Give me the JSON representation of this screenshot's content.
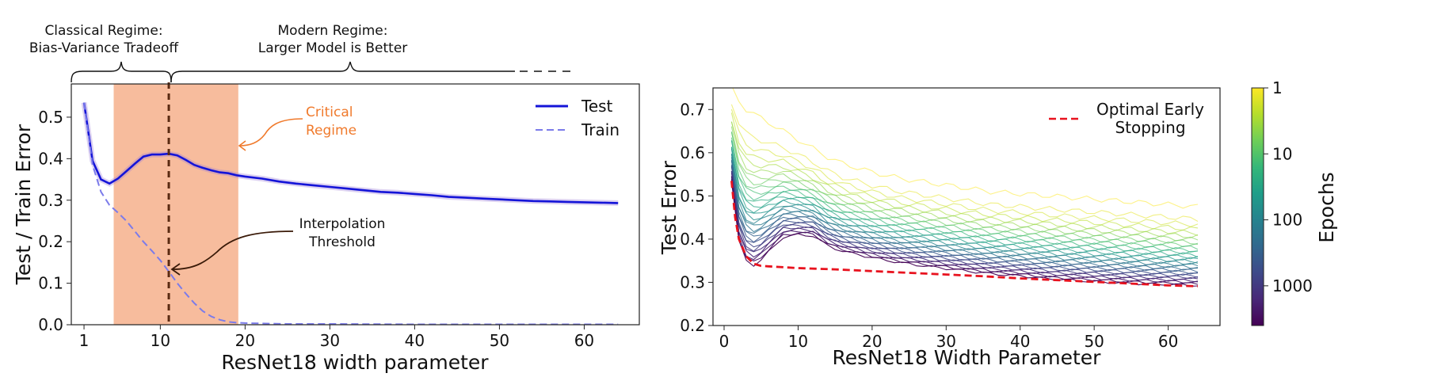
{
  "chart_data": [
    {
      "type": "line",
      "xlabel": "ResNet18 width parameter",
      "ylabel": "Test / Train Error",
      "xlim": [
        -0.5,
        66.5
      ],
      "ylim": [
        0.0,
        0.58
      ],
      "xticks": [
        1,
        10,
        20,
        30,
        40,
        50,
        60
      ],
      "yticks": [
        0.0,
        0.1,
        0.2,
        0.3,
        0.4,
        0.5
      ],
      "ytick_labels": [
        "0.0",
        "0.1",
        "0.2",
        "0.3",
        "0.4",
        "0.5"
      ],
      "legend_position": "top-right",
      "series": [
        {
          "name": "Test",
          "color": "#1414d8",
          "style": "solid",
          "x": [
            1,
            2,
            3,
            4,
            5,
            6,
            7,
            8,
            9,
            10,
            11,
            12,
            13,
            14,
            15,
            16,
            17,
            18,
            19,
            20,
            22,
            24,
            26,
            28,
            30,
            32,
            34,
            36,
            38,
            40,
            42,
            44,
            46,
            48,
            50,
            52,
            54,
            56,
            58,
            60,
            62,
            64
          ],
          "y": [
            0.535,
            0.395,
            0.35,
            0.34,
            0.352,
            0.37,
            0.388,
            0.405,
            0.41,
            0.41,
            0.412,
            0.408,
            0.397,
            0.385,
            0.378,
            0.372,
            0.367,
            0.365,
            0.36,
            0.357,
            0.352,
            0.345,
            0.34,
            0.336,
            0.332,
            0.328,
            0.324,
            0.32,
            0.318,
            0.315,
            0.312,
            0.308,
            0.306,
            0.304,
            0.302,
            0.3,
            0.298,
            0.297,
            0.296,
            0.295,
            0.294,
            0.293
          ]
        },
        {
          "name": "Train",
          "color": "#7b7bea",
          "style": "dashed",
          "x": [
            1,
            2,
            3,
            4,
            5,
            6,
            7,
            8,
            9,
            10,
            11,
            12,
            13,
            14,
            15,
            16,
            17,
            18,
            19,
            20,
            22,
            25,
            30,
            40,
            50,
            60,
            64
          ],
          "y": [
            0.535,
            0.385,
            0.32,
            0.288,
            0.27,
            0.25,
            0.225,
            0.2,
            0.178,
            0.155,
            0.128,
            0.1,
            0.075,
            0.052,
            0.033,
            0.02,
            0.012,
            0.007,
            0.005,
            0.004,
            0.003,
            0.002,
            0.002,
            0.001,
            0.001,
            0.001,
            0.001
          ]
        }
      ],
      "shaded_region": {
        "x0": 4.5,
        "x1": 19.2,
        "color": "#f4a57c"
      },
      "threshold_x": 11,
      "annotations": {
        "classical": [
          "Classical Regime:",
          "Bias-Variance Tradeoff"
        ],
        "modern": [
          "Modern Regime:",
          "Larger Model is Better"
        ],
        "critical": [
          "Critical",
          "Regime"
        ],
        "interpolation": [
          "Interpolation",
          "Threshold"
        ]
      },
      "colors": {
        "critical_text": "#f07a2c",
        "threshold_line": "#5a2a12",
        "arrow_dark": "#3a1a08"
      }
    },
    {
      "type": "line",
      "xlabel": "ResNet18 Width Parameter",
      "ylabel": "Test Error",
      "xlim": [
        -1.5,
        67
      ],
      "ylim": [
        0.2,
        0.75
      ],
      "xticks": [
        0,
        10,
        20,
        30,
        40,
        50,
        60
      ],
      "yticks": [
        0.2,
        0.3,
        0.4,
        0.5,
        0.6,
        0.7
      ],
      "legend_position": "top-right",
      "series": [
        {
          "name": "Optimal Early Stopping",
          "color": "#e8121e",
          "style": "dashed",
          "x": [
            1,
            1.5,
            2,
            3,
            4,
            5,
            6,
            8,
            10,
            15,
            20,
            25,
            30,
            35,
            40,
            45,
            50,
            55,
            60,
            64
          ],
          "y": [
            0.535,
            0.45,
            0.4,
            0.36,
            0.343,
            0.338,
            0.337,
            0.335,
            0.333,
            0.33,
            0.326,
            0.322,
            0.318,
            0.314,
            0.309,
            0.305,
            0.301,
            0.297,
            0.293,
            0.291
          ]
        }
      ],
      "epoch_curves": {
        "count": 30,
        "epochs_min": 1,
        "epochs_max": 4000,
        "x_grid": [
          1,
          2,
          3,
          4,
          5,
          6,
          8,
          10,
          12,
          14,
          16,
          18,
          20,
          24,
          28,
          32,
          36,
          40,
          44,
          48,
          52,
          56,
          60,
          64
        ],
        "test_final": [
          0.535,
          0.395,
          0.35,
          0.34,
          0.352,
          0.37,
          0.405,
          0.41,
          0.408,
          0.385,
          0.372,
          0.365,
          0.357,
          0.345,
          0.336,
          0.328,
          0.32,
          0.315,
          0.308,
          0.304,
          0.3,
          0.297,
          0.295,
          0.293
        ],
        "early_fill": [
          0.75,
          0.72,
          0.7,
          0.69,
          0.68,
          0.67,
          0.65,
          0.63,
          0.61,
          0.59,
          0.575,
          0.565,
          0.555,
          0.54,
          0.53,
          0.52,
          0.51,
          0.505,
          0.5,
          0.495,
          0.49,
          0.485,
          0.48,
          0.475
        ]
      },
      "colorbar": {
        "label": "Epochs",
        "ticks": [
          {
            "label": "1",
            "epochs": 1
          },
          {
            "label": "10",
            "epochs": 10
          },
          {
            "label": "100",
            "epochs": 100
          },
          {
            "label": "1000",
            "epochs": 1000
          }
        ],
        "colormap": "viridis_r",
        "stops": [
          "#fde725",
          "#b5de2b",
          "#6ece58",
          "#35b779",
          "#1f9e89",
          "#26828e",
          "#31688e",
          "#3e4989",
          "#482878",
          "#440154"
        ]
      }
    }
  ]
}
